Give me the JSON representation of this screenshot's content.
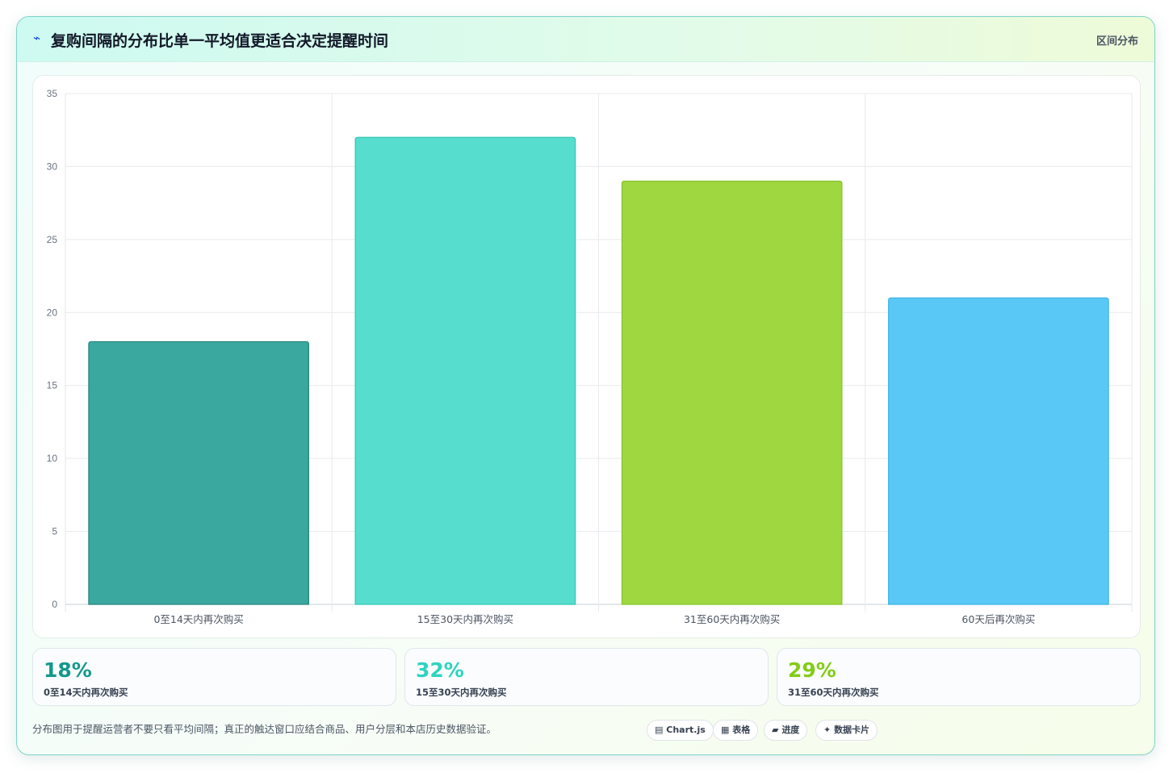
{
  "header": {
    "icon": "⌁",
    "title": "复购间隔的分布比单一平均值更适合决定提醒时间",
    "tag": "区间分布"
  },
  "chart_data": {
    "type": "bar",
    "categories": [
      "0至14天内再次购买",
      "15至30天内再次购买",
      "31至60天内再次购买",
      "60天后再次购买"
    ],
    "values": [
      18,
      32,
      29,
      21
    ],
    "colors": [
      "#3aa89f",
      "#56ddcd",
      "#9ed73f",
      "#5ac8f7"
    ],
    "border_colors": [
      "#26837a",
      "#34c6b3",
      "#86c427",
      "#3bb3e4"
    ],
    "ylim": [
      0,
      35
    ],
    "yticks": [
      0,
      5,
      10,
      15,
      20,
      25,
      30,
      35
    ],
    "grid": true,
    "legend": "none"
  },
  "stats": [
    {
      "value": "18%",
      "label": "0至14天内再次购买",
      "color": "#16988c"
    },
    {
      "value": "32%",
      "label": "15至30天内再次购买",
      "color": "#2dd4bf"
    },
    {
      "value": "29%",
      "label": "31至60天内再次购买",
      "color": "#84cc16"
    }
  ],
  "footer": {
    "note": "分布图用于提醒运营者不要只看平均间隔；真正的触达窗口应结合商品、用户分层和本店历史数据验证。",
    "pills": [
      {
        "icon": "▤",
        "label": "Chart.js",
        "icon_name": "chart-icon"
      },
      {
        "icon": "▦",
        "label": "表格",
        "icon_name": "table-icon"
      },
      {
        "icon": "▰",
        "label": "进度",
        "icon_name": "progress-icon"
      },
      {
        "icon": "✦",
        "label": "数据卡片",
        "icon_name": "sparkle-icon"
      }
    ]
  }
}
